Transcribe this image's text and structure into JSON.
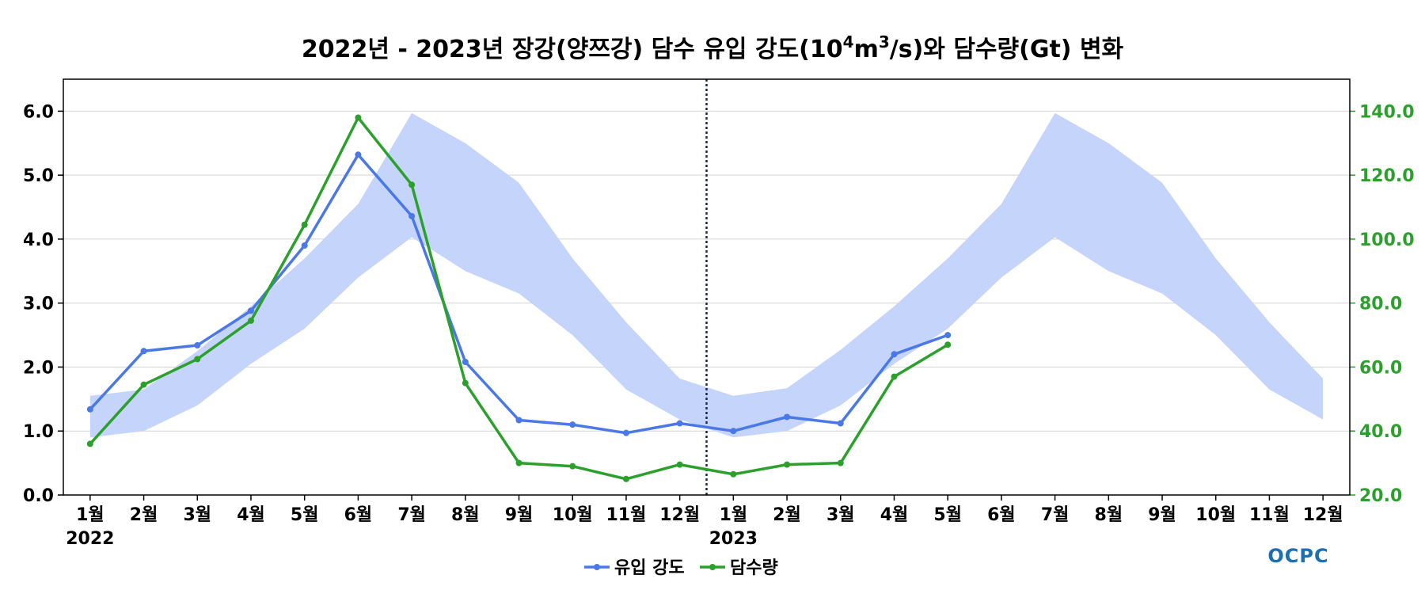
{
  "chart_data": {
    "type": "line",
    "title": {
      "prefix": "2022년 - 2023년 장강(양쯔강) 담수 유입 강도(10",
      "sup1": "4",
      "mid": "m",
      "sup2": "3",
      "suffix": "/s)와 담수량(Gt) 변화"
    },
    "x_labels": [
      "1월",
      "2월",
      "3월",
      "4월",
      "5월",
      "6월",
      "7월",
      "8월",
      "9월",
      "10월",
      "11월",
      "12월",
      "1월",
      "2월",
      "3월",
      "4월",
      "5월",
      "6월",
      "7월",
      "8월",
      "9월",
      "10월",
      "11월",
      "12월"
    ],
    "year_labels": [
      {
        "text": "2022",
        "index": 0
      },
      {
        "text": "2023",
        "index": 12
      }
    ],
    "y_left": {
      "min": 0,
      "max": 6.5,
      "ticks": [
        0.0,
        1.0,
        2.0,
        3.0,
        4.0,
        5.0,
        6.0
      ]
    },
    "y_right": {
      "min": 20,
      "max": 150,
      "ticks": [
        20.0,
        40.0,
        60.0,
        80.0,
        100.0,
        120.0,
        140.0
      ],
      "color": "#2ca02c"
    },
    "divider_between_index": [
      11,
      12
    ],
    "climatology_band": {
      "color": "#c5d4fb",
      "upper": [
        1.55,
        1.65,
        2.25,
        2.95,
        3.7,
        4.55,
        5.97,
        5.5,
        4.88,
        3.7,
        2.7,
        1.82,
        1.55,
        1.67,
        2.27,
        2.95,
        3.7,
        4.55,
        5.97,
        5.5,
        4.88,
        3.7,
        2.7,
        1.82
      ],
      "lower": [
        0.9,
        1.0,
        1.4,
        2.05,
        2.6,
        3.4,
        4.03,
        3.5,
        3.15,
        2.5,
        1.65,
        1.18,
        0.9,
        1.0,
        1.4,
        2.05,
        2.6,
        3.4,
        4.03,
        3.5,
        3.15,
        2.5,
        1.65,
        1.18
      ]
    },
    "series": [
      {
        "name": "유입 강도",
        "axis": "left",
        "color": "#4a78e6",
        "values": [
          1.34,
          2.25,
          2.34,
          2.88,
          3.9,
          5.32,
          4.36,
          2.08,
          1.17,
          1.1,
          0.97,
          1.12,
          1.0,
          1.22,
          1.12,
          2.2,
          2.5
        ]
      },
      {
        "name": "담수량",
        "axis": "right",
        "color": "#2ca02c",
        "values": [
          36.0,
          54.5,
          62.5,
          74.5,
          104.5,
          138.0,
          117.0,
          55.0,
          30.0,
          29.0,
          25.0,
          29.5,
          26.5,
          29.5,
          30.0,
          57.0,
          67.0
        ]
      }
    ],
    "grid": true,
    "legend_position": "bottom-center"
  },
  "logo_text": "OCPC"
}
